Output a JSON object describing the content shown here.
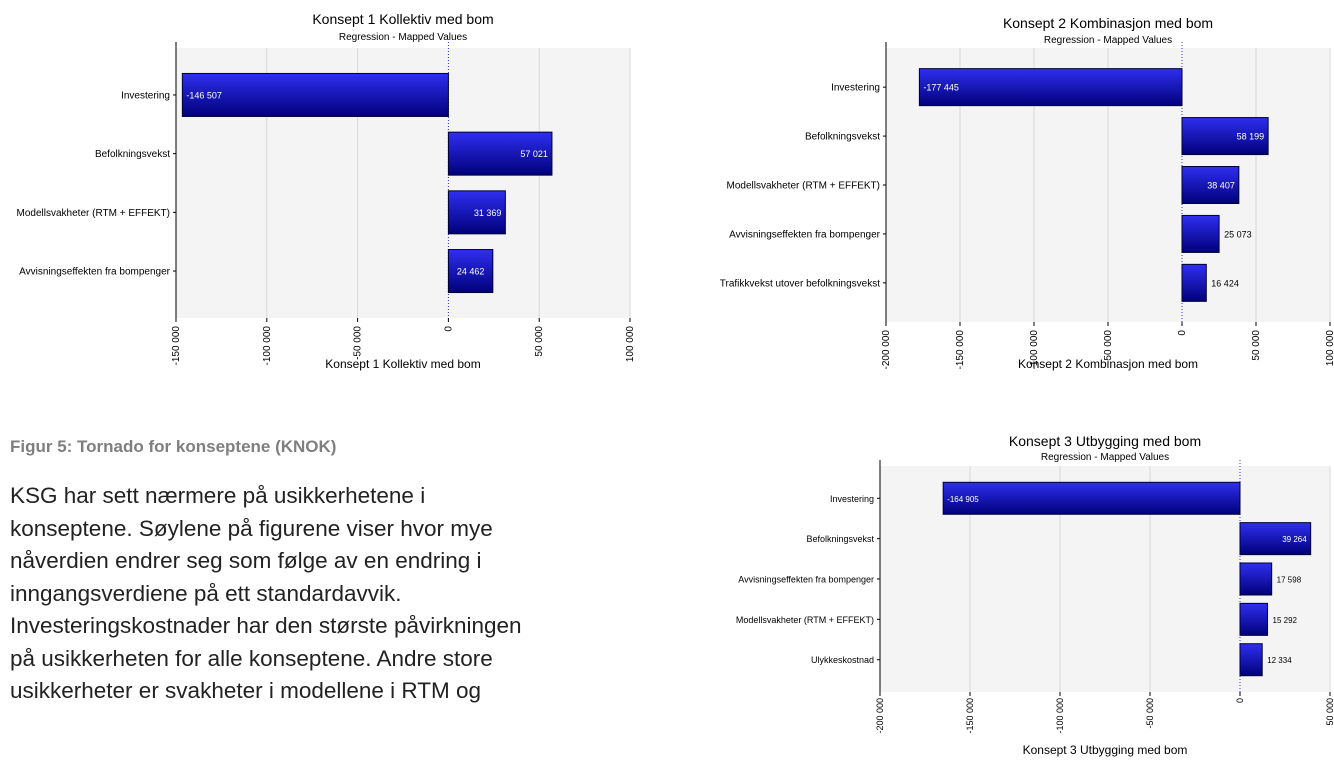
{
  "chart_data": [
    {
      "type": "bar",
      "orientation": "horizontal",
      "title": "Konsept 1 Kollektiv med bom",
      "subtitle": "Regression - Mapped Values",
      "xlabel": "Konsept 1 Kollektiv med bom",
      "categories": [
        "Investering",
        "Befolkningsvekst",
        "Modellsvakheter (RTM + EFFEKT)",
        "Avvisningseffekten fra bompenger"
      ],
      "values": [
        -146507,
        57021,
        31369,
        24462
      ],
      "value_labels": [
        "-146 507",
        "57 021",
        "31 369",
        "24 462"
      ],
      "xlim": [
        -150000,
        100000
      ],
      "ticks": [
        -150000,
        -100000,
        -50000,
        0,
        50000,
        100000
      ],
      "tick_labels": [
        "-150 000",
        "-100 000",
        "-50 000",
        "0",
        "50 000",
        "100 000"
      ],
      "grid": true
    },
    {
      "type": "bar",
      "orientation": "horizontal",
      "title": "Konsept 2 Kombinasjon med bom",
      "subtitle": "Regression - Mapped Values",
      "xlabel": "Konsept 2 Kombinasjon med bom",
      "categories": [
        "Investering",
        "Befolkningsvekst",
        "Modellsvakheter (RTM + EFFEKT)",
        "Avvisningseffekten fra bompenger",
        "Trafikkvekst utover befolkningsvekst"
      ],
      "values": [
        -177445,
        58199,
        38407,
        25073,
        16424
      ],
      "value_labels": [
        "-177 445",
        "58 199",
        "38 407",
        "25 073",
        "16 424"
      ],
      "xlim": [
        -200000,
        100000
      ],
      "ticks": [
        -200000,
        -150000,
        -100000,
        -50000,
        0,
        50000,
        100000
      ],
      "tick_labels": [
        "-200 000",
        "-150 000",
        "-100 000",
        "-50 000",
        "0",
        "50 000",
        "100 000"
      ],
      "grid": true
    },
    {
      "type": "bar",
      "orientation": "horizontal",
      "title": "Konsept 3 Utbygging med bom",
      "subtitle": "Regression - Mapped Values",
      "xlabel": "Konsept 3 Utbygging med bom",
      "categories": [
        "Investering",
        "Befolkningsvekst",
        "Avvisningseffekten fra bompenger",
        "Modellsvakheter (RTM + EFFEKT)",
        "Ulykkeskostnad"
      ],
      "values": [
        -164905,
        39264,
        17598,
        15292,
        12334
      ],
      "value_labels": [
        "-164 905",
        "39 264",
        "17 598",
        "15 292",
        "12 334"
      ],
      "xlim": [
        -200000,
        50000
      ],
      "ticks": [
        -200000,
        -150000,
        -100000,
        -50000,
        0,
        50000
      ],
      "tick_labels": [
        "-200 000",
        "-150 000",
        "-100 000",
        "-50 000",
        "0",
        "50 000"
      ],
      "grid": true
    }
  ],
  "document": {
    "caption": "Figur 5: Tornado for konseptene (KNOK)",
    "paragraph": "KSG har sett nærmere på usikkerhetene i\nkonseptene. Søylene på figurene viser hvor mye\nnåverdien endrer seg som følge av en endring i\ninngangsverdiene på ett standardavvik.\nInvesteringskostnader har den største påvirkningen\npå usikkerheten for alle konseptene. Andre store\nusikkerheter er svakheter i modellene i RTM og"
  },
  "colors": {
    "bar_fill_dark": "#00007a",
    "bar_fill_light": "#2f2ff0",
    "plot_bg": "#f4f4f4",
    "zero_line": "#3333cc",
    "caption": "#7f7f7f"
  }
}
